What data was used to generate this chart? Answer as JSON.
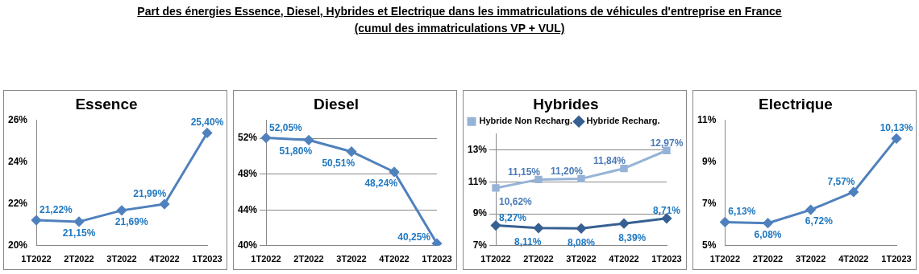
{
  "chart_data": [
    {
      "type": "line",
      "title": "Essence",
      "annotations": [
        "Part des énergies Essence, Diesel, Hybrides et Electrique dans les immatriculations de véhicules d'entreprise en France",
        "(cumul des immatriculations VP + VUL)"
      ],
      "categories": [
        "1T2022",
        "2T2022",
        "3T2022",
        "4T2022",
        "1T2023"
      ],
      "series": [
        {
          "color": "#4f81bd",
          "values": [
            21.22,
            21.15,
            21.69,
            21.99,
            25.4
          ],
          "value_labels": [
            "21,22%",
            "21,15%",
            "21,69%",
            "21,99%",
            "25,40%"
          ]
        }
      ],
      "ylim": [
        20,
        26
      ],
      "yticks": [
        {
          "value": 20,
          "label": "20%"
        },
        {
          "value": 22,
          "label": "22%"
        },
        {
          "value": 24,
          "label": "24%"
        },
        {
          "value": 26,
          "label": "26%"
        }
      ],
      "grid": false,
      "legend": false,
      "marker": "diamond"
    },
    {
      "type": "line",
      "title": "Diesel",
      "categories": [
        "1T2022",
        "2T2022",
        "3T2022",
        "4T2022",
        "1T2023"
      ],
      "series": [
        {
          "color": "#4f81bd",
          "values": [
            52.05,
            51.8,
            50.51,
            48.24,
            40.25
          ],
          "value_labels": [
            "52,05%",
            "51,80%",
            "50,51%",
            "48,24%",
            "40,25%"
          ]
        }
      ],
      "ylim": [
        40,
        54
      ],
      "yticks": [
        {
          "value": 40,
          "label": "40%"
        },
        {
          "value": 44,
          "label": "44%"
        },
        {
          "value": 48,
          "label": "48%"
        },
        {
          "value": 52,
          "label": "52%"
        }
      ],
      "grid": "y",
      "legend": false,
      "marker": "diamond"
    },
    {
      "type": "line",
      "title": "Hybrides",
      "categories": [
        "1T2022",
        "2T2022",
        "3T2022",
        "4T2022",
        "1T2023"
      ],
      "series": [
        {
          "name": "Hybride Non Recharg.",
          "color": "#95b3d7",
          "marker": "square",
          "values": [
            10.62,
            11.15,
            11.2,
            11.84,
            12.97
          ],
          "value_labels": [
            "10,62%",
            "11,15%",
            "11,20%",
            "11,84%",
            "12,97%"
          ]
        },
        {
          "name": "Hybride Recharg.",
          "color": "#376092",
          "marker": "diamond",
          "values": [
            8.27,
            8.11,
            8.08,
            8.39,
            8.71
          ],
          "value_labels": [
            "8,27%",
            "8,11%",
            "8,08%",
            "8,39%",
            "8,71%"
          ]
        }
      ],
      "ylim": [
        7,
        14
      ],
      "yticks": [
        {
          "value": 7,
          "label": "7%"
        },
        {
          "value": 9,
          "label": "9%"
        },
        {
          "value": 11,
          "label": "11%"
        },
        {
          "value": 13,
          "label": "13%"
        }
      ],
      "grid": "y",
      "legend": "top left"
    },
    {
      "type": "line",
      "title": "Electrique",
      "categories": [
        "1T2022",
        "2T2022",
        "3T2022",
        "4T2022",
        "1T2023"
      ],
      "series": [
        {
          "color": "#4f81bd",
          "values": [
            6.13,
            6.08,
            6.72,
            7.57,
            10.13
          ],
          "value_labels": [
            "6,13%",
            "6,08%",
            "6,72%",
            "7,57%",
            "10,13%"
          ]
        }
      ],
      "ylim": [
        5,
        11
      ],
      "yticks": [
        {
          "value": 5,
          "label": "5%"
        },
        {
          "value": 7,
          "label": "7%"
        },
        {
          "value": 9,
          "label": "9%"
        },
        {
          "value": 11,
          "label": "11%"
        }
      ],
      "grid": false,
      "legend": false,
      "marker": "diamond"
    }
  ]
}
